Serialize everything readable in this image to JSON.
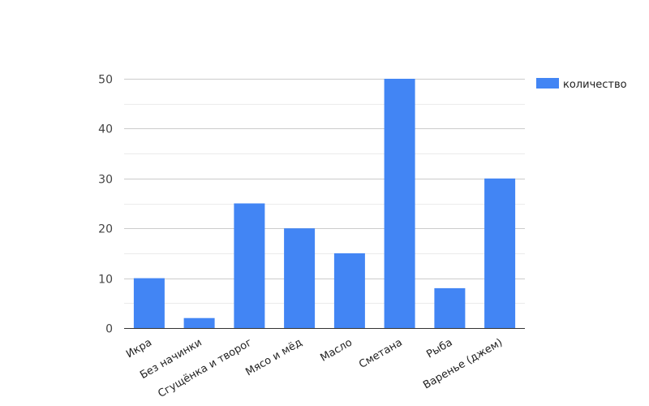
{
  "chart_data": {
    "type": "bar",
    "categories": [
      "Икра",
      "Без начинки",
      "Сгущёнка и творог",
      "Мясо и мёд",
      "Масло",
      "Сметана",
      "Рыба",
      "Варенье (джем)"
    ],
    "series": [
      {
        "name": "количество",
        "values": [
          10,
          2,
          25,
          20,
          15,
          50,
          8,
          30
        ],
        "color": "#4285f4"
      }
    ],
    "yticks": [
      0,
      10,
      20,
      30,
      40,
      50
    ],
    "ylim": [
      0,
      50
    ],
    "grid": true,
    "legend": "right",
    "title": "",
    "xlabel": "",
    "ylabel": ""
  }
}
